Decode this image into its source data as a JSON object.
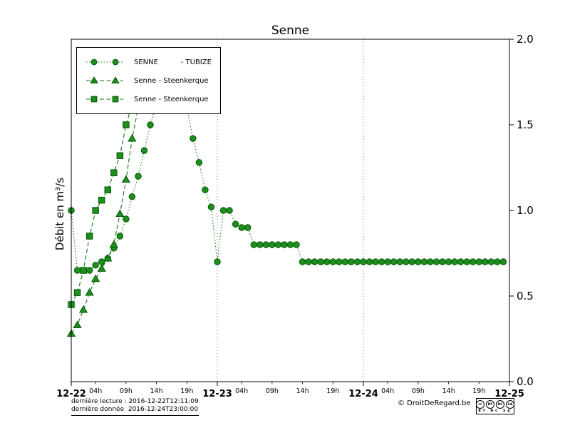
{
  "footer": {
    "last_reading": "dernière lecture : 2016-12-22T12:11:09",
    "last_data": "dernière donnée  2016-12-24T23:00:00",
    "copyright": "© DroitDeRegard.be",
    "license": "BY NC SA",
    "license_badges": [
      "cc",
      "BY",
      "NC",
      "SA"
    ]
  },
  "colors": {
    "line": "#147814",
    "marker_fill": "#1d8f1d",
    "marker_edge": "#0a5c0a",
    "grid": "#666666",
    "axis": "#000000"
  },
  "chart_data": {
    "type": "line",
    "title": "Senne",
    "ylabel": "Débit en m³/s",
    "xlabel": "",
    "ylim": [
      0.0,
      2.0
    ],
    "xlim": [
      0,
      72
    ],
    "ytick_labels": [
      "0.0",
      "0.5",
      "1.0",
      "1.5",
      "2.0"
    ],
    "yticks_side": "right",
    "grid_x": [
      24,
      48
    ],
    "legend_position": "upper left",
    "x_unit": "hours since 2016-12-22 00:00",
    "day_ticks": [
      {
        "x": 0,
        "label": "12-22"
      },
      {
        "x": 24,
        "label": "12-23"
      },
      {
        "x": 48,
        "label": "12-24"
      },
      {
        "x": 72,
        "label": "12-25"
      }
    ],
    "hour_ticks": [
      {
        "x": 4,
        "label": "04h"
      },
      {
        "x": 9,
        "label": "09h"
      },
      {
        "x": 14,
        "label": "14h"
      },
      {
        "x": 19,
        "label": "19h"
      },
      {
        "x": 28,
        "label": "04h"
      },
      {
        "x": 33,
        "label": "09h"
      },
      {
        "x": 38,
        "label": "14h"
      },
      {
        "x": 43,
        "label": "19h"
      },
      {
        "x": 52,
        "label": "04h"
      },
      {
        "x": 57,
        "label": "09h"
      },
      {
        "x": 62,
        "label": "14h"
      },
      {
        "x": 67,
        "label": "19h"
      }
    ],
    "series": [
      {
        "name": "SENNE          - TUBIZE",
        "marker": "circle",
        "line": "dotted",
        "x": [
          0,
          1,
          2,
          3,
          4,
          5,
          6,
          7,
          8,
          9,
          10,
          11,
          12,
          13,
          14,
          15,
          16,
          17,
          18,
          19,
          20,
          21,
          22,
          23,
          24,
          25,
          26,
          27,
          28,
          29,
          30,
          31,
          32,
          33,
          34,
          35,
          36,
          37,
          38,
          39,
          40,
          41,
          42,
          43,
          44,
          45,
          46,
          47,
          48,
          49,
          50,
          51,
          52,
          53,
          54,
          55,
          56,
          57,
          58,
          59,
          60,
          61,
          62,
          63,
          64,
          65,
          66,
          67,
          68,
          69,
          70,
          71
        ],
        "y": [
          1.0,
          0.65,
          0.65,
          0.65,
          0.68,
          0.7,
          0.72,
          0.78,
          0.85,
          0.95,
          1.08,
          1.2,
          1.35,
          1.5,
          1.62,
          1.72,
          1.78,
          1.75,
          1.65,
          1.6,
          1.42,
          1.28,
          1.12,
          1.02,
          0.7,
          1.0,
          1.0,
          0.92,
          0.9,
          0.9,
          0.8,
          0.8,
          0.8,
          0.8,
          0.8,
          0.8,
          0.8,
          0.8,
          0.7,
          0.7,
          0.7,
          0.7,
          0.7,
          0.7,
          0.7,
          0.7,
          0.7,
          0.7,
          0.7,
          0.7,
          0.7,
          0.7,
          0.7,
          0.7,
          0.7,
          0.7,
          0.7,
          0.7,
          0.7,
          0.7,
          0.7,
          0.7,
          0.7,
          0.7,
          0.7,
          0.7,
          0.7,
          0.7,
          0.7,
          0.7,
          0.7,
          0.7
        ]
      },
      {
        "name": "Senne - Steenkerque",
        "marker": "triangle",
        "line": "dashed",
        "x": [
          0,
          1,
          2,
          3,
          4,
          5,
          6,
          7,
          8,
          9,
          10,
          11,
          12
        ],
        "y": [
          0.28,
          0.33,
          0.42,
          0.52,
          0.6,
          0.66,
          0.72,
          0.8,
          0.98,
          1.18,
          1.42,
          1.6,
          1.87
        ]
      },
      {
        "name": "Senne - Steenkerque",
        "marker": "square",
        "line": "dashed",
        "x": [
          0,
          1,
          2,
          3,
          4,
          5,
          6,
          7,
          8,
          9,
          10,
          11
        ],
        "y": [
          0.45,
          0.52,
          0.65,
          0.85,
          1.0,
          1.06,
          1.12,
          1.22,
          1.32,
          1.5,
          1.62,
          1.88
        ]
      }
    ]
  }
}
